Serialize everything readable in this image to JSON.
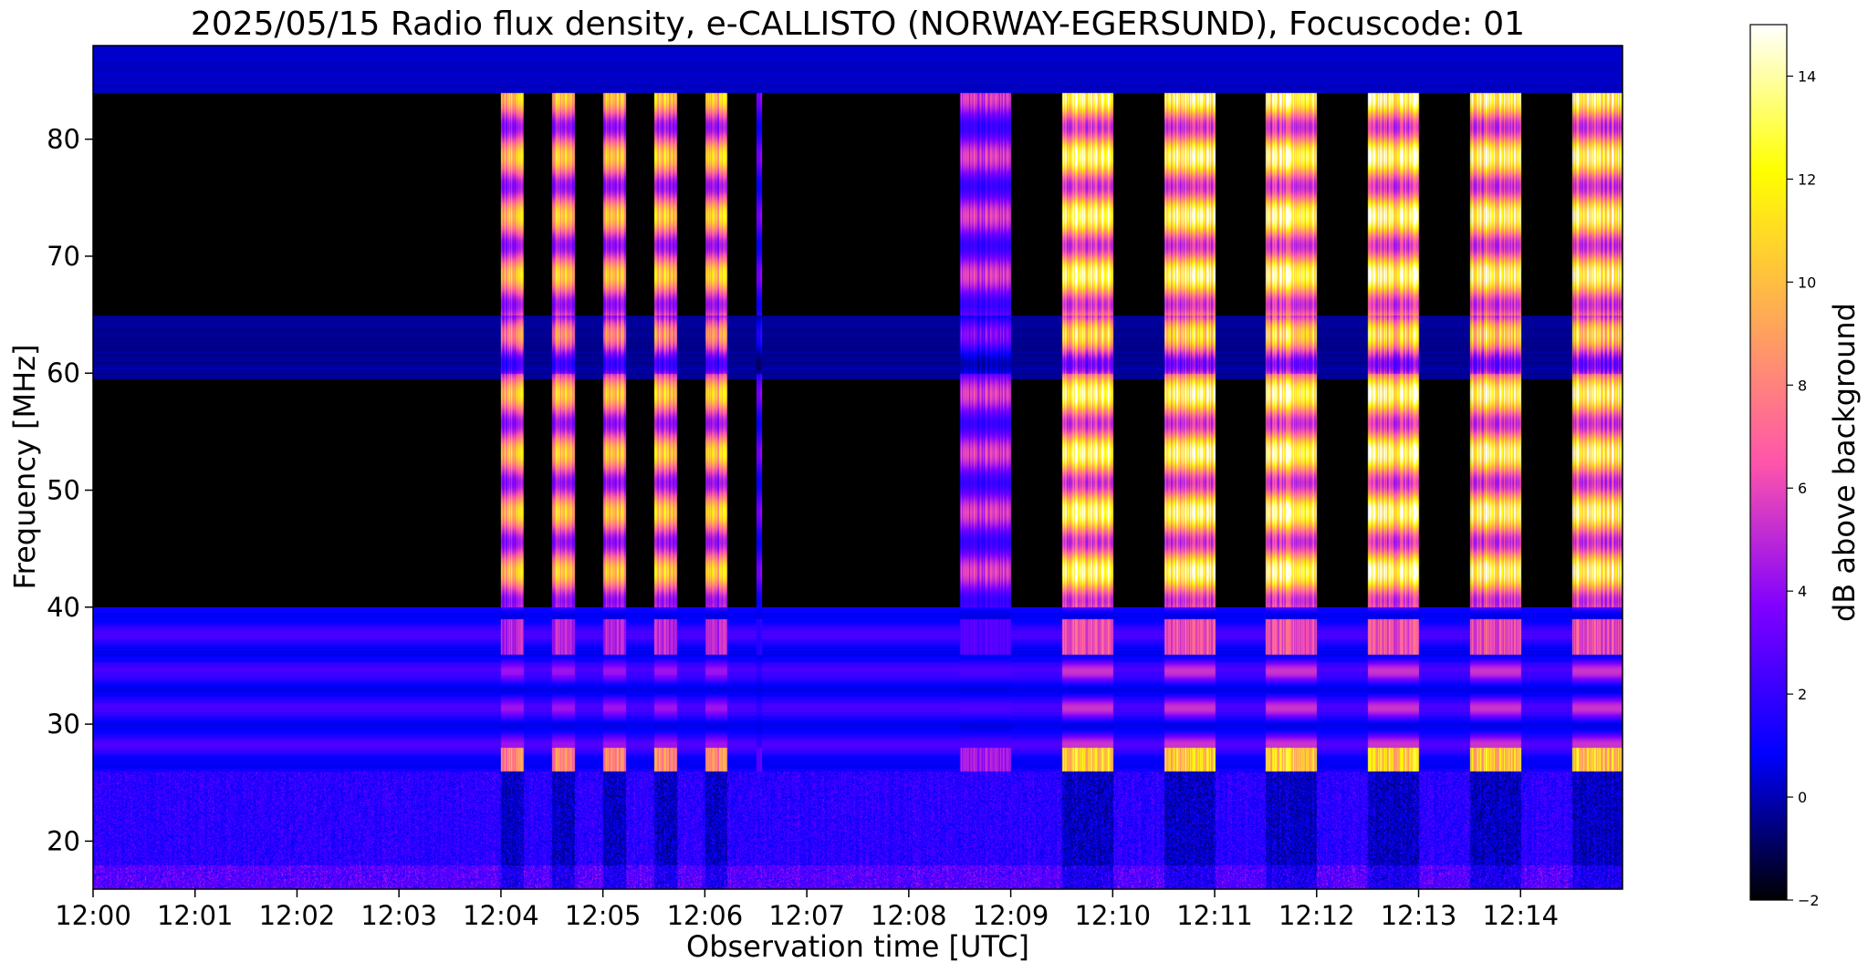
{
  "chart_data": {
    "type": "heatmap",
    "title": "2025/05/15  Radio flux density, e-CALLISTO (NORWAY-EGERSUND), Focuscode: 01",
    "xlabel": "Observation time [UTC]",
    "ylabel": "Frequency [MHz]",
    "xlim_minutes": [
      0,
      15
    ],
    "ylim": [
      15.9,
      88
    ],
    "x_ticks": [
      {
        "m": 0,
        "label": "12:00"
      },
      {
        "m": 1,
        "label": "12:01"
      },
      {
        "m": 2,
        "label": "12:02"
      },
      {
        "m": 3,
        "label": "12:03"
      },
      {
        "m": 4,
        "label": "12:04"
      },
      {
        "m": 5,
        "label": "12:05"
      },
      {
        "m": 6,
        "label": "12:06"
      },
      {
        "m": 7,
        "label": "12:07"
      },
      {
        "m": 8,
        "label": "12:08"
      },
      {
        "m": 9,
        "label": "12:09"
      },
      {
        "m": 10,
        "label": "12:10"
      },
      {
        "m": 11,
        "label": "12:11"
      },
      {
        "m": 12,
        "label": "12:12"
      },
      {
        "m": 13,
        "label": "12:13"
      },
      {
        "m": 14,
        "label": "12:14"
      }
    ],
    "y_ticks": [
      20,
      30,
      40,
      50,
      60,
      70,
      80
    ],
    "colorbar": {
      "label": "dB above background",
      "range": [
        -2,
        15
      ],
      "ticks": [
        -2,
        0,
        2,
        4,
        6,
        8,
        10,
        12,
        14
      ],
      "colormap": "gnuplot2",
      "stops": [
        "#000000",
        "#0000ff",
        "#7f00ff",
        "#ff55aa",
        "#ffaa55",
        "#ffff00",
        "#ffffff"
      ]
    },
    "bursts_minutes": [
      {
        "start": 4.0,
        "end": 4.22,
        "peak_db": 11
      },
      {
        "start": 4.5,
        "end": 4.72,
        "peak_db": 11
      },
      {
        "start": 5.0,
        "end": 5.22,
        "peak_db": 11
      },
      {
        "start": 5.5,
        "end": 5.72,
        "peak_db": 11
      },
      {
        "start": 6.0,
        "end": 6.22,
        "peak_db": 11
      },
      {
        "start": 6.5,
        "end": 6.56,
        "peak_db": 4
      },
      {
        "start": 8.5,
        "end": 9.0,
        "peak_db": 6
      },
      {
        "start": 9.5,
        "end": 10.0,
        "peak_db": 14
      },
      {
        "start": 10.5,
        "end": 11.0,
        "peak_db": 14
      },
      {
        "start": 11.5,
        "end": 12.0,
        "peak_db": 14
      },
      {
        "start": 12.5,
        "end": 13.0,
        "peak_db": 14
      },
      {
        "start": 13.5,
        "end": 14.0,
        "peak_db": 14
      },
      {
        "start": 14.5,
        "end": 15.0,
        "peak_db": 14
      }
    ]
  }
}
